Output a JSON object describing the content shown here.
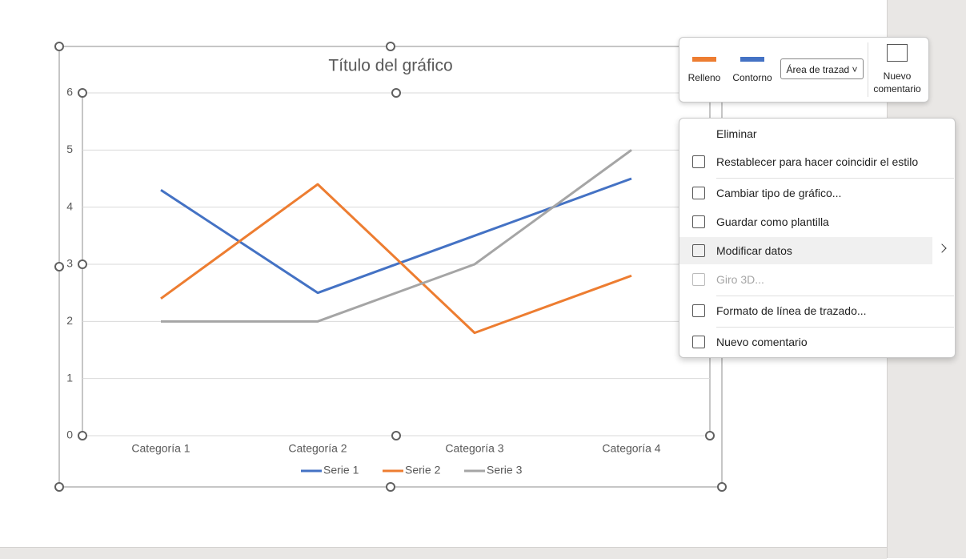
{
  "chart_data": {
    "type": "line",
    "title": "Título del gráfico",
    "categories": [
      "Categoría 1",
      "Categoría 2",
      "Categoría 3",
      "Categoría 4"
    ],
    "series": [
      {
        "name": "Serie 1",
        "color": "#4472c4",
        "values": [
          4.3,
          2.5,
          3.5,
          4.5
        ]
      },
      {
        "name": "Serie 2",
        "color": "#ed7d31",
        "values": [
          2.4,
          4.4,
          1.8,
          2.8
        ]
      },
      {
        "name": "Serie 3",
        "color": "#a5a5a5",
        "values": [
          2,
          2,
          3,
          5
        ]
      }
    ],
    "ylim": [
      0,
      6
    ],
    "yticks": [
      0,
      1,
      2,
      3,
      4,
      5,
      6
    ],
    "grid": true,
    "legend": "bottom"
  },
  "toolbar": {
    "fill": "Relleno",
    "outline": "Contorno",
    "element": "Área de trazad",
    "comment": "Nuevo comentario"
  },
  "context_menu": {
    "items": [
      "Eliminar",
      "Restablecer para hacer coincidir el estilo",
      "Cambiar tipo de gráfico...",
      "Guardar como plantilla",
      "Modificar datos",
      "Giro 3D...",
      "Formato de línea de trazado...",
      "Nuevo comentario"
    ]
  }
}
